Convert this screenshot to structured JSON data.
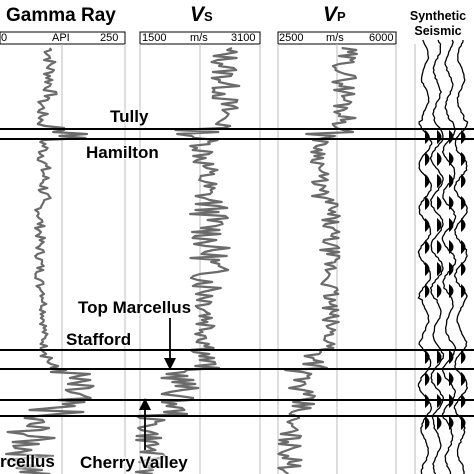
{
  "tracks": {
    "gamma_ray": {
      "title": "Gamma Ray",
      "scale_min": "0",
      "scale_unit": "API",
      "scale_max": "250"
    },
    "vs": {
      "symbol": "V",
      "subscript": "S",
      "scale_min": "1500",
      "scale_unit": "m/s",
      "scale_max": "3100"
    },
    "vp": {
      "symbol": "V",
      "subscript": "P",
      "scale_min": "2500",
      "scale_unit": "m/s",
      "scale_max": "6000"
    },
    "synthetic": {
      "title_line1": "Synthetic",
      "title_line2": "Seismic"
    }
  },
  "formations": {
    "tully": "Tully",
    "hamilton": "Hamilton",
    "top_marcellus": "Top Marcellus",
    "stafford": "Stafford",
    "marcellus": "rcellus",
    "cherry_valley": "Cherry Valley"
  },
  "colors": {
    "log_curve": "#6b6b6b",
    "grid_line": "#bdbdbd",
    "horizon_line": "#000000",
    "wiggle_fill": "#000000",
    "background": "#ffffff"
  }
}
